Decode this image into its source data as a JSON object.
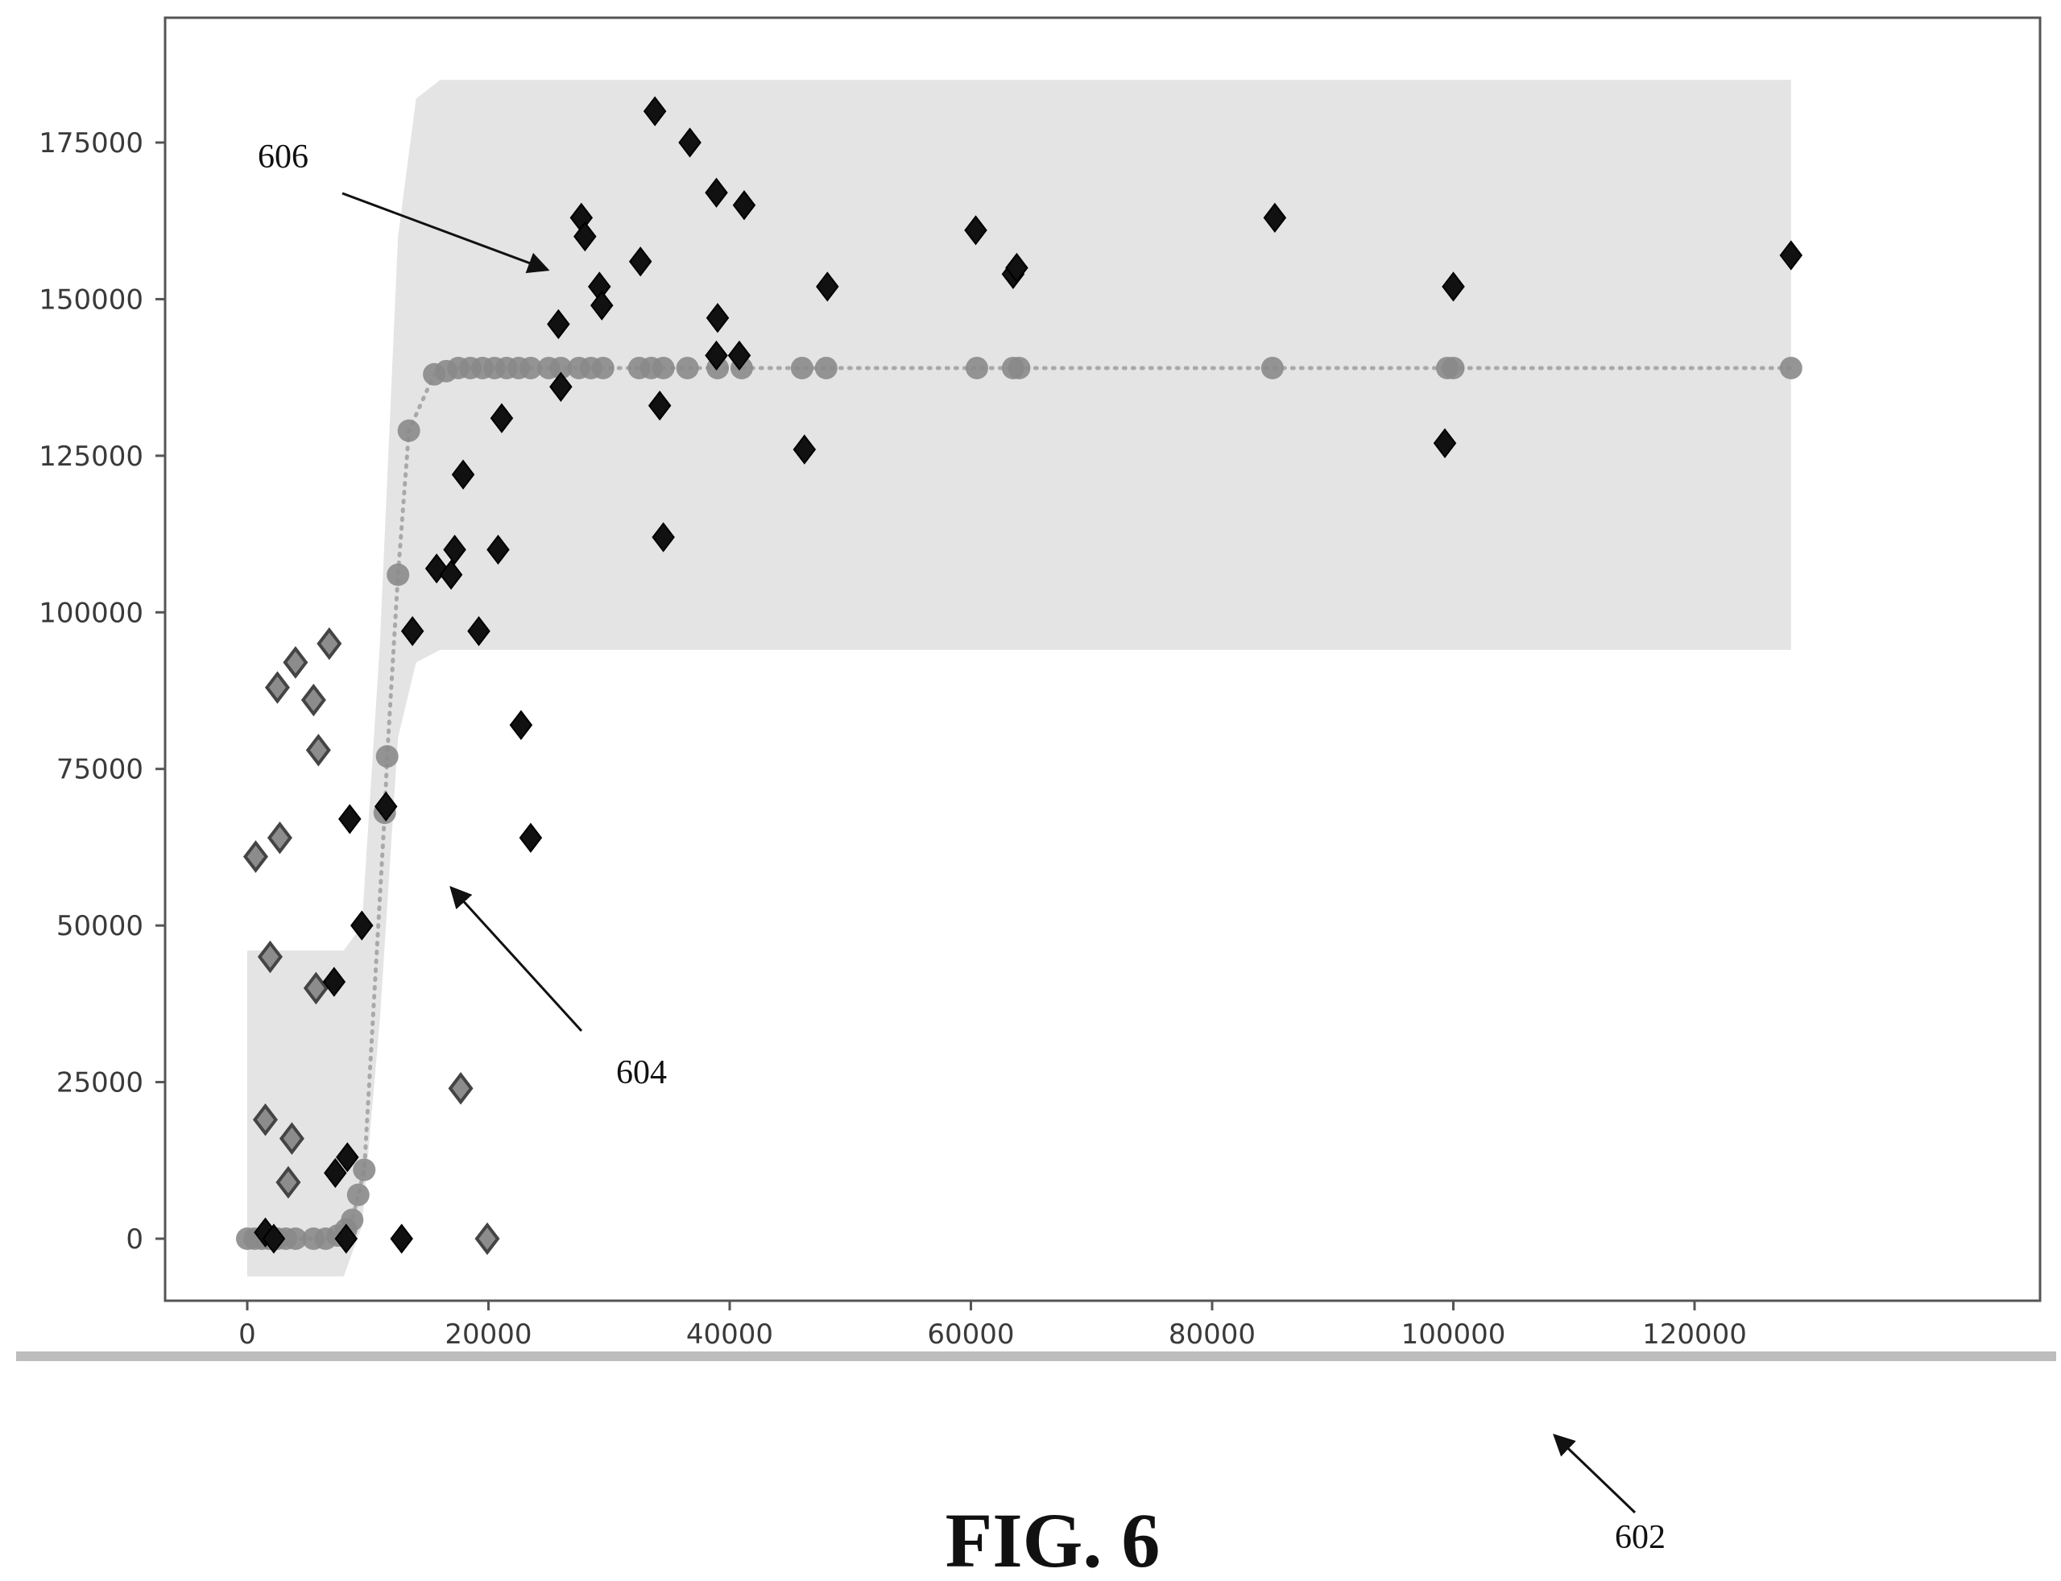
{
  "chart_data": {
    "type": "scatter",
    "xlim": [
      -6000,
      133000
    ],
    "ylim": [
      -18000,
      194000
    ],
    "x_ticks": [
      "0",
      "20000",
      "40000",
      "60000",
      "80000",
      "100000",
      "120000"
    ],
    "x_tick_values": [
      0,
      20000,
      40000,
      60000,
      80000,
      100000,
      120000
    ],
    "y_ticks": [
      "0",
      "25000",
      "50000",
      "75000",
      "100000",
      "125000",
      "150000",
      "175000"
    ],
    "y_tick_values": [
      0,
      25000,
      50000,
      75000,
      100000,
      125000,
      150000,
      175000
    ],
    "grid": false,
    "legend": "none",
    "colors": {
      "band": "#e4e4e4",
      "fit_line": "#a9a9a9",
      "fit_points": "#8a8a8a",
      "observed_dark": "#111111",
      "observed_light": "#777777"
    },
    "band_upper": [
      [
        0,
        46000
      ],
      [
        8000,
        46000
      ],
      [
        9500,
        50000
      ],
      [
        11000,
        95000
      ],
      [
        12500,
        160000
      ],
      [
        14000,
        182000
      ],
      [
        16000,
        185000
      ],
      [
        128000,
        185000
      ]
    ],
    "band_lower": [
      [
        0,
        -6000
      ],
      [
        8000,
        -6000
      ],
      [
        9500,
        2000
      ],
      [
        11000,
        35000
      ],
      [
        12500,
        80000
      ],
      [
        14000,
        92000
      ],
      [
        16000,
        94000
      ],
      [
        128000,
        94000
      ]
    ],
    "fit_points": [
      [
        0,
        0
      ],
      [
        600,
        0
      ],
      [
        1200,
        0
      ],
      [
        1800,
        0
      ],
      [
        2500,
        0
      ],
      [
        3200,
        0
      ],
      [
        4000,
        0
      ],
      [
        5500,
        0
      ],
      [
        6500,
        0
      ],
      [
        7500,
        500
      ],
      [
        8200,
        1500
      ],
      [
        8700,
        3000
      ],
      [
        9200,
        7000
      ],
      [
        9700,
        11000
      ],
      [
        11400,
        68000
      ],
      [
        11600,
        77000
      ],
      [
        12500,
        106000
      ],
      [
        13400,
        129000
      ],
      [
        15500,
        138000
      ],
      [
        16500,
        138500
      ],
      [
        17500,
        139000
      ],
      [
        18500,
        139000
      ],
      [
        19500,
        139000
      ],
      [
        20500,
        139000
      ],
      [
        21500,
        139000
      ],
      [
        22500,
        139000
      ],
      [
        23500,
        139000
      ],
      [
        25000,
        139000
      ],
      [
        26000,
        139000
      ],
      [
        27500,
        139000
      ],
      [
        28500,
        139000
      ],
      [
        29500,
        139000
      ],
      [
        32500,
        139000
      ],
      [
        33500,
        139000
      ],
      [
        34500,
        139000
      ],
      [
        36500,
        139000
      ],
      [
        39000,
        139000
      ],
      [
        41000,
        139000
      ],
      [
        46000,
        139000
      ],
      [
        48000,
        139000
      ],
      [
        60500,
        139000
      ],
      [
        63500,
        139000
      ],
      [
        64000,
        139000
      ],
      [
        85000,
        139000
      ],
      [
        99500,
        139000
      ],
      [
        100000,
        139000
      ],
      [
        128000,
        139000
      ]
    ],
    "observed_dark": [
      [
        1500,
        1000
      ],
      [
        2200,
        0
      ],
      [
        8200,
        0
      ],
      [
        8500,
        67000
      ],
      [
        8300,
        13000
      ],
      [
        7300,
        10500
      ],
      [
        7200,
        41000
      ],
      [
        9500,
        50000
      ],
      [
        11500,
        69000
      ],
      [
        12800,
        0
      ],
      [
        13700,
        97000
      ],
      [
        15700,
        107000
      ],
      [
        16900,
        106000
      ],
      [
        17200,
        110000
      ],
      [
        17900,
        122000
      ],
      [
        19200,
        97000
      ],
      [
        20800,
        110000
      ],
      [
        21100,
        131000
      ],
      [
        22700,
        82000
      ],
      [
        23500,
        64000
      ],
      [
        25800,
        146000
      ],
      [
        26000,
        136000
      ],
      [
        27700,
        163000
      ],
      [
        28000,
        160000
      ],
      [
        29200,
        152000
      ],
      [
        29400,
        149000
      ],
      [
        32600,
        156000
      ],
      [
        33800,
        180000
      ],
      [
        34200,
        133000
      ],
      [
        34500,
        112000
      ],
      [
        36700,
        175000
      ],
      [
        38900,
        167000
      ],
      [
        39000,
        147000
      ],
      [
        38900,
        141000
      ],
      [
        40800,
        141000
      ],
      [
        41200,
        165000
      ],
      [
        46200,
        126000
      ],
      [
        48100,
        152000
      ],
      [
        60400,
        161000
      ],
      [
        63500,
        154000
      ],
      [
        63800,
        155000
      ],
      [
        85200,
        163000
      ],
      [
        99300,
        127000
      ],
      [
        100000,
        152000
      ],
      [
        128000,
        157000
      ]
    ],
    "observed_light": [
      [
        700,
        61000
      ],
      [
        1500,
        19000
      ],
      [
        1900,
        45000
      ],
      [
        2500,
        88000
      ],
      [
        2700,
        64000
      ],
      [
        3400,
        9000
      ],
      [
        3700,
        16000
      ],
      [
        4000,
        92000
      ],
      [
        5500,
        86000
      ],
      [
        5700,
        40000
      ],
      [
        5900,
        78000
      ],
      [
        6800,
        95000
      ],
      [
        17700,
        24000
      ],
      [
        19900,
        0
      ]
    ]
  },
  "annotations": {
    "label_606": "606",
    "label_604": "604",
    "label_602": "602"
  },
  "caption": "FIG. 6"
}
